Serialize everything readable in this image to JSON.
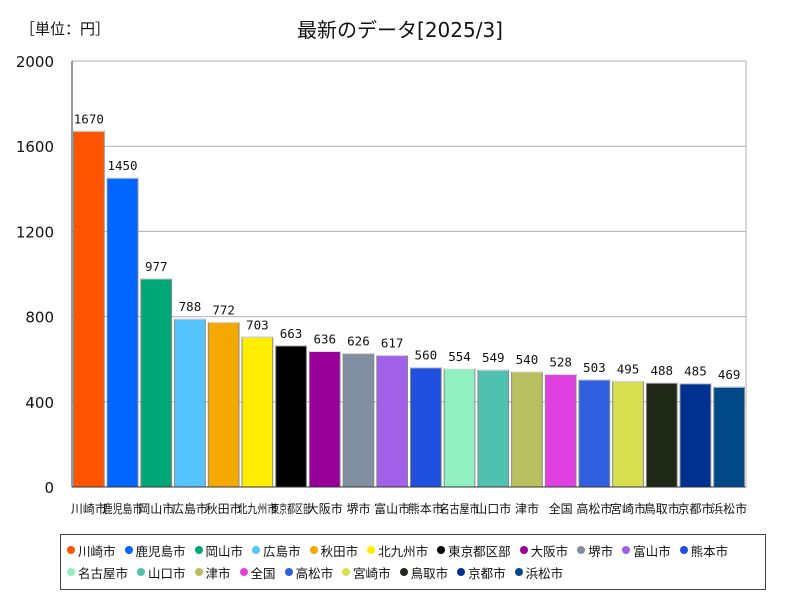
{
  "chart_data": {
    "type": "bar",
    "title": "最新のデータ[2025/3]",
    "unit_label": "［単位：円］",
    "ylim": [
      0,
      2000
    ],
    "yticks": [
      0,
      400,
      800,
      1200,
      1600,
      2000
    ],
    "grid": true,
    "legend_position": "bottom",
    "categories": [
      "川崎市",
      "鹿児島市",
      "岡山市",
      "広島市",
      "秋田市",
      "北九州市",
      "東京都区部",
      "大阪市",
      "堺市",
      "富山市",
      "熊本市",
      "名古屋市",
      "山口市",
      "津市",
      "全国",
      "高松市",
      "宮崎市",
      "鳥取市",
      "京都市",
      "浜松市"
    ],
    "values": [
      1670,
      1450,
      977,
      788,
      772,
      703,
      663,
      636,
      626,
      617,
      560,
      554,
      549,
      540,
      528,
      503,
      495,
      488,
      485,
      469
    ],
    "value_labels": [
      "1670",
      "1450",
      "977",
      "788",
      "772",
      "703",
      "663",
      "636",
      "626",
      "617",
      "560",
      "554",
      "549",
      "540",
      "528",
      "503",
      "495",
      "488",
      "485",
      "469"
    ],
    "colors": [
      "#ff5500",
      "#0066ff",
      "#00a878",
      "#55c4ff",
      "#f5a800",
      "#ffee00",
      "#000000",
      "#990099",
      "#8090a0",
      "#a060e8",
      "#2050e0",
      "#90f0c0",
      "#50c0b0",
      "#b8c060",
      "#e040e0",
      "#3060e0",
      "#d8e050",
      "#202818",
      "#003090",
      "#004888"
    ]
  }
}
